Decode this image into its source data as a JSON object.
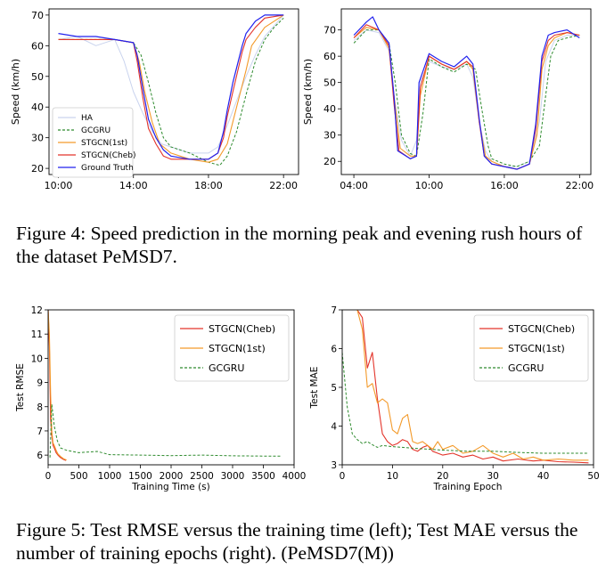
{
  "figure4": {
    "caption": "Figure 4:  Speed prediction in the morning peak and evening rush hours of the dataset PeMSD7."
  },
  "figure5": {
    "caption": "Figure 5: Test RMSE versus the training time (left); Test MAE versus the number of training epochs (right). (PeMSD7(M))"
  },
  "colors": {
    "HA": "#c9d3ee",
    "GCGRU": "#2e8b2e",
    "STGCN(1st)": "#f39a2a",
    "STGCN(Cheb)": "#e3342a",
    "Ground Truth": "#2222ee"
  },
  "chart_data": [
    {
      "type": "line",
      "ylabel": "Speed (km/h)",
      "xlabel": "",
      "x_ticks": [
        "10:00",
        "14:00",
        "18:00",
        "22:00"
      ],
      "x_hours": [
        10,
        14,
        18,
        22
      ],
      "xlim": [
        9.5,
        22.8
      ],
      "y_ticks": [
        20,
        30,
        40,
        50,
        60,
        70
      ],
      "ylim": [
        18,
        72
      ],
      "legend": "center-left",
      "legend_order": [
        "HA",
        "GCGRU",
        "STGCN(1st)",
        "STGCN(Cheb)",
        "Ground Truth"
      ],
      "series": [
        {
          "name": "HA",
          "x": [
            10.0,
            11.0,
            12.0,
            13.0,
            13.5,
            14.0,
            14.5,
            15.0,
            15.5,
            16.0,
            17.0,
            18.0,
            18.5,
            19.0,
            19.5,
            20.0,
            20.5,
            21.0,
            22.0
          ],
          "y": [
            62,
            63,
            60,
            62,
            55,
            45,
            38,
            32,
            28,
            27,
            25,
            25,
            27,
            34,
            42,
            50,
            57,
            63,
            70
          ]
        },
        {
          "name": "GCGRU",
          "x": [
            10.0,
            11.0,
            12.0,
            13.0,
            14.0,
            14.4,
            14.8,
            15.2,
            15.6,
            16.0,
            17.0,
            18.0,
            18.6,
            19.0,
            19.5,
            20.0,
            20.5,
            21.0,
            21.5,
            22.0
          ],
          "y": [
            62,
            62,
            62,
            62,
            61,
            57,
            48,
            38,
            30,
            27,
            25,
            22,
            21,
            24,
            32,
            44,
            55,
            62,
            66,
            69
          ]
        },
        {
          "name": "STGCN(1st)",
          "x": [
            10.0,
            11.0,
            12.0,
            13.0,
            14.0,
            14.3,
            14.6,
            15.0,
            15.4,
            16.0,
            17.0,
            18.0,
            18.5,
            19.0,
            19.5,
            20.0,
            20.3,
            21.0,
            22.0
          ],
          "y": [
            62,
            62,
            62,
            62,
            61,
            55,
            45,
            35,
            28,
            25,
            23,
            22,
            23,
            28,
            40,
            52,
            60,
            66,
            70
          ]
        },
        {
          "name": "STGCN(Cheb)",
          "x": [
            10.0,
            11.0,
            12.0,
            13.0,
            14.0,
            14.2,
            14.5,
            14.8,
            15.2,
            15.6,
            16.0,
            17.0,
            18.0,
            18.5,
            18.8,
            19.0,
            19.3,
            19.8,
            20.0,
            20.5,
            21.0,
            22.0
          ],
          "y": [
            62,
            62,
            62,
            62,
            61,
            55,
            43,
            33,
            28,
            24,
            23,
            23,
            23,
            25,
            30,
            37,
            45,
            58,
            62,
            66,
            69,
            70
          ]
        },
        {
          "name": "Ground Truth",
          "x": [
            10.0,
            11.0,
            12.0,
            13.0,
            14.0,
            14.2,
            14.5,
            14.8,
            15.2,
            15.6,
            16.0,
            17.0,
            18.0,
            18.5,
            18.8,
            19.0,
            19.3,
            19.8,
            20.0,
            20.5,
            21.0,
            22.0
          ],
          "y": [
            64,
            63,
            63,
            62,
            61,
            57,
            46,
            36,
            30,
            26,
            24,
            23,
            23,
            25,
            32,
            39,
            48,
            60,
            64,
            68,
            70,
            70
          ]
        }
      ]
    },
    {
      "type": "line",
      "ylabel": "Speed (km/h)",
      "xlabel": "",
      "x_ticks": [
        "04:00",
        "10:00",
        "16:00",
        "22:00"
      ],
      "x_hours": [
        4,
        10,
        16,
        22
      ],
      "xlim": [
        3.0,
        22.9
      ],
      "y_ticks": [
        20,
        30,
        40,
        50,
        60,
        70
      ],
      "ylim": [
        15,
        78
      ],
      "legend": "none",
      "legend_order": [],
      "series": [
        {
          "name": "HA",
          "x": [
            4.0,
            5.0,
            6.0,
            6.8,
            7.2,
            7.8,
            8.5,
            9.0,
            9.3,
            10.0,
            11.0,
            12.0,
            13.0,
            13.5,
            14.0,
            14.5,
            15.0,
            16.0,
            17.0,
            18.0,
            18.8,
            19.3,
            20.0,
            21.0,
            22.0
          ],
          "y": [
            66,
            70,
            69,
            62,
            45,
            28,
            22,
            28,
            50,
            58,
            56,
            55,
            57,
            52,
            35,
            24,
            20,
            18,
            18,
            20,
            35,
            58,
            66,
            68,
            68
          ]
        },
        {
          "name": "GCGRU",
          "x": [
            4.0,
            5.0,
            6.0,
            6.8,
            7.3,
            7.8,
            8.5,
            9.0,
            9.5,
            10.0,
            11.0,
            12.0,
            13.0,
            13.7,
            14.2,
            14.7,
            15.0,
            16.0,
            17.0,
            18.0,
            18.8,
            19.3,
            19.7,
            20.3,
            21.0,
            22.0
          ],
          "y": [
            65,
            70,
            70,
            65,
            50,
            30,
            23,
            22,
            38,
            59,
            56,
            54,
            57,
            55,
            40,
            26,
            21,
            19,
            18,
            20,
            26,
            45,
            60,
            66,
            67,
            68
          ]
        },
        {
          "name": "STGCN(1st)",
          "x": [
            4.0,
            5.0,
            6.0,
            6.8,
            7.2,
            7.7,
            8.5,
            9.0,
            9.3,
            10.0,
            11.0,
            12.0,
            13.0,
            13.5,
            14.0,
            14.5,
            15.0,
            16.0,
            17.0,
            18.0,
            18.6,
            19.0,
            19.5,
            20.0,
            21.0,
            22.0
          ],
          "y": [
            67,
            71,
            70,
            63,
            45,
            25,
            22,
            22,
            45,
            60,
            57,
            55,
            58,
            55,
            35,
            22,
            20,
            18,
            17,
            19,
            30,
            55,
            64,
            67,
            69,
            68
          ]
        },
        {
          "name": "STGCN(Cheb)",
          "x": [
            4.0,
            5.0,
            6.0,
            6.8,
            7.2,
            7.6,
            8.5,
            9.0,
            9.3,
            10.0,
            11.0,
            12.0,
            13.0,
            13.5,
            14.0,
            14.4,
            15.0,
            16.0,
            17.0,
            18.0,
            18.5,
            19.0,
            19.5,
            20.0,
            21.0,
            22.0
          ],
          "y": [
            67,
            72,
            70,
            64,
            42,
            24,
            21,
            22,
            48,
            60,
            57,
            55,
            58,
            56,
            35,
            22,
            19,
            18,
            17,
            19,
            32,
            58,
            66,
            68,
            69,
            68
          ]
        },
        {
          "name": "Ground Truth",
          "x": [
            4.0,
            5.0,
            5.5,
            6.0,
            6.8,
            7.2,
            7.5,
            8.5,
            9.0,
            9.2,
            10.0,
            11.0,
            12.0,
            13.0,
            13.5,
            14.0,
            14.4,
            15.0,
            16.0,
            17.0,
            18.0,
            18.5,
            19.0,
            19.5,
            20.0,
            21.0,
            22.0
          ],
          "y": [
            68,
            73,
            75,
            70,
            65,
            45,
            24,
            21,
            22,
            50,
            61,
            58,
            56,
            60,
            57,
            36,
            22,
            19,
            18,
            17,
            19,
            34,
            60,
            68,
            69,
            70,
            67
          ]
        }
      ]
    },
    {
      "type": "line",
      "ylabel": "Test RMSE",
      "xlabel": "Training Time (s)",
      "x_ticks": [
        0,
        500,
        1000,
        1500,
        2000,
        2500,
        3000,
        3500,
        4000
      ],
      "xlim": [
        0,
        4000
      ],
      "y_ticks": [
        6,
        7,
        8,
        9,
        10,
        11,
        12
      ],
      "ylim": [
        5.6,
        12
      ],
      "legend": "top-right",
      "legend_order": [
        "STGCN(Cheb)",
        "STGCN(1st)",
        "GCGRU"
      ],
      "series": [
        {
          "name": "STGCN(Cheb)",
          "x": [
            0,
            20,
            40,
            60,
            80,
            100,
            130,
            160,
            200,
            250,
            290
          ],
          "y": [
            12,
            10.5,
            7.5,
            6.8,
            6.4,
            6.3,
            6.1,
            6.0,
            5.9,
            5.82,
            5.78
          ]
        },
        {
          "name": "STGCN(1st)",
          "x": [
            0,
            20,
            40,
            60,
            80,
            100,
            130,
            160,
            200,
            250,
            300
          ],
          "y": [
            12,
            11,
            8.5,
            7.0,
            6.5,
            6.4,
            6.2,
            6.05,
            5.95,
            5.85,
            5.8
          ]
        },
        {
          "name": "GCGRU",
          "x": [
            30,
            60,
            100,
            150,
            200,
            300,
            400,
            500,
            600,
            800,
            1000,
            1500,
            2000,
            2500,
            3000,
            3500,
            3800
          ],
          "y": [
            5.9,
            8.1,
            7.2,
            6.6,
            6.3,
            6.2,
            6.15,
            6.1,
            6.12,
            6.15,
            6.02,
            6.0,
            5.98,
            6.0,
            5.97,
            5.96,
            5.96
          ]
        }
      ]
    },
    {
      "type": "line",
      "ylabel": "Test MAE",
      "xlabel": "Training Epoch",
      "x_ticks": [
        0,
        10,
        20,
        30,
        40,
        50
      ],
      "xlim": [
        0,
        50
      ],
      "y_ticks": [
        3,
        4,
        5,
        6,
        7
      ],
      "ylim": [
        3,
        7
      ],
      "legend": "top-right",
      "legend_order": [
        "STGCN(Cheb)",
        "STGCN(1st)",
        "GCGRU"
      ],
      "series": [
        {
          "name": "STGCN(Cheb)",
          "x": [
            3,
            4,
            5,
            6,
            7,
            8,
            9,
            10,
            11,
            12,
            13,
            14,
            15,
            16,
            17,
            18,
            19,
            20,
            22,
            24,
            26,
            28,
            30,
            32,
            35,
            38,
            40,
            43,
            46,
            49
          ],
          "y": [
            7.0,
            6.8,
            5.5,
            5.9,
            4.7,
            3.8,
            3.6,
            3.5,
            3.55,
            3.65,
            3.6,
            3.4,
            3.35,
            3.45,
            3.5,
            3.35,
            3.3,
            3.25,
            3.3,
            3.2,
            3.25,
            3.15,
            3.2,
            3.1,
            3.15,
            3.1,
            3.12,
            3.08,
            3.07,
            3.05
          ]
        },
        {
          "name": "STGCN(1st)",
          "x": [
            3,
            4,
            5,
            6,
            7,
            8,
            9,
            10,
            11,
            12,
            13,
            14,
            15,
            16,
            17,
            18,
            19,
            20,
            22,
            24,
            26,
            28,
            30,
            32,
            34,
            36,
            38,
            40,
            43,
            46,
            49
          ],
          "y": [
            7.0,
            6.5,
            5.0,
            5.1,
            4.6,
            4.7,
            4.6,
            3.9,
            3.8,
            4.2,
            4.3,
            3.6,
            3.55,
            3.6,
            3.5,
            3.4,
            3.6,
            3.4,
            3.5,
            3.3,
            3.35,
            3.5,
            3.3,
            3.2,
            3.3,
            3.15,
            3.2,
            3.12,
            3.15,
            3.12,
            3.12
          ]
        },
        {
          "name": "GCGRU",
          "x": [
            0,
            1,
            2,
            3,
            4,
            5,
            6,
            7,
            8,
            10,
            12,
            15,
            20,
            25,
            30,
            35,
            40,
            45,
            49
          ],
          "y": [
            5.9,
            4.5,
            3.8,
            3.65,
            3.55,
            3.6,
            3.52,
            3.45,
            3.5,
            3.47,
            3.45,
            3.42,
            3.38,
            3.35,
            3.35,
            3.32,
            3.3,
            3.3,
            3.3
          ]
        }
      ]
    }
  ]
}
